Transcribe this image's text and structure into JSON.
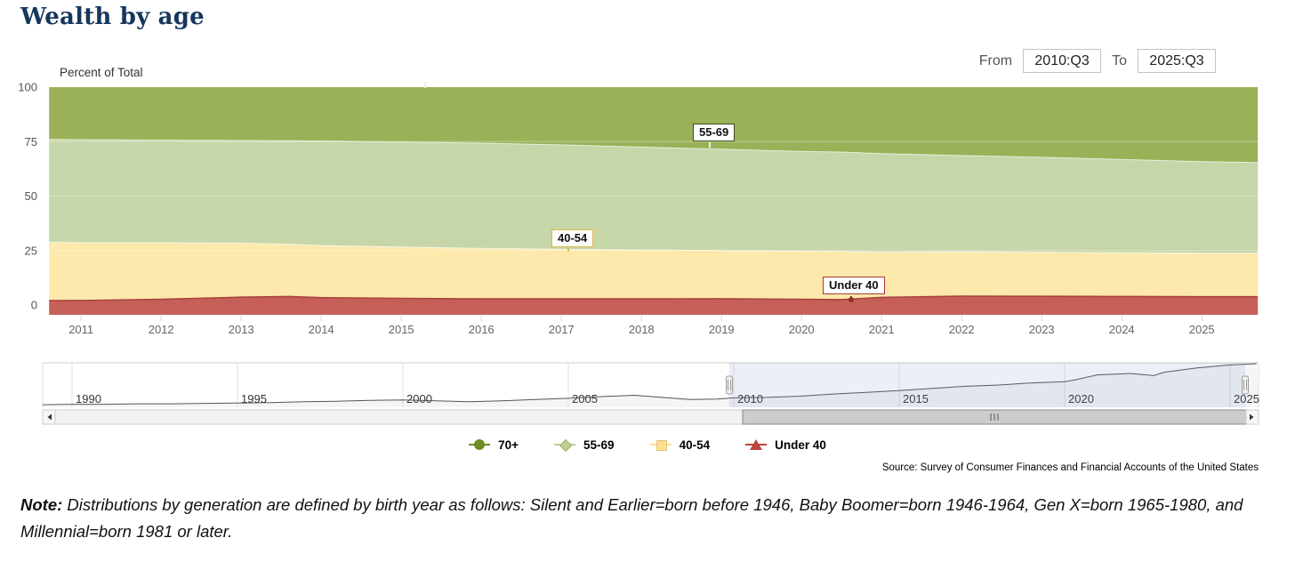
{
  "title": "Wealth by age",
  "controls": {
    "from_label": "From",
    "from_value": "2010:Q3",
    "to_label": "To",
    "to_value": "2025:Q3"
  },
  "chart": {
    "unit_label": "Percent of Total",
    "y_ticks": [
      100,
      75,
      50,
      25,
      0
    ],
    "x_ticks": [
      "2011",
      "2012",
      "2013",
      "2014",
      "2015",
      "2016",
      "2017",
      "2018",
      "2019",
      "2020",
      "2021",
      "2022",
      "2023",
      "2024",
      "2025"
    ]
  },
  "series_labels": {
    "s5569": "55-69",
    "s4054": "40-54",
    "under40": "Under 40"
  },
  "legend": {
    "items": [
      {
        "label": "70+",
        "marker": "circle",
        "color": "#6e8c25"
      },
      {
        "label": "55-69",
        "marker": "diamond",
        "color": "#bdd193"
      },
      {
        "label": "40-54",
        "marker": "square",
        "color": "#fbe094"
      },
      {
        "label": "Under 40",
        "marker": "triangle",
        "color": "#bc4540"
      }
    ]
  },
  "navigator": {
    "labels": [
      "1990",
      "1995",
      "2000",
      "2005",
      "2010",
      "2015",
      "2020",
      "2025"
    ],
    "selected_from": "2010:Q3",
    "selected_to": "2025:Q3"
  },
  "source": "Source: Survey of Consumer Finances and Financial Accounts of the United States",
  "note": {
    "label": "Note:",
    "text": " Distributions by generation are defined by birth year as follows: Silent and Earlier=born before 1946, Baby Boomer=born 1946-1964, Gen X=born 1965-1980, and Millennial=born 1981 or later."
  },
  "chart_data": {
    "type": "area",
    "stacking": "percent",
    "stack_order": "bottom-up",
    "title": "Wealth by age",
    "ylabel": "Percent of Total",
    "ylim": [
      -4.5,
      100
    ],
    "xlim": [
      2010.5,
      2025.75
    ],
    "grid": "horizontal",
    "legend_position": "bottom",
    "x": [
      2010.6,
      2011,
      2012,
      2013,
      2013.6,
      2014,
      2015,
      2016,
      2017,
      2018,
      2019,
      2020,
      2020.5,
      2021,
      2022,
      2023,
      2024,
      2025,
      2025.7
    ],
    "series": [
      {
        "name": "Under 40",
        "color": "#c55f58",
        "values": [
          2.0,
          2.1,
          2.6,
          3.6,
          3.9,
          3.4,
          3.0,
          2.8,
          2.8,
          2.8,
          2.9,
          2.6,
          2.5,
          3.5,
          4.1,
          4.0,
          3.9,
          3.8,
          3.8
        ]
      },
      {
        "name": "40-54",
        "color": "#fce9ab",
        "values": [
          26.8,
          26.5,
          26.0,
          24.8,
          24.0,
          23.9,
          23.6,
          23.2,
          22.8,
          22.5,
          22.1,
          22.1,
          22.1,
          20.8,
          20.4,
          20.2,
          20.1,
          20.0,
          20.0
        ]
      },
      {
        "name": "55-69",
        "color": "#c6d6a8",
        "values": [
          47.2,
          47.3,
          47.1,
          47.1,
          47.5,
          48.0,
          48.2,
          48.3,
          47.9,
          47.2,
          46.5,
          45.8,
          45.6,
          45.2,
          44.1,
          43.6,
          42.8,
          42.0,
          41.6
        ]
      },
      {
        "name": "70+",
        "color": "#9ab158",
        "values": [
          24.0,
          24.1,
          24.3,
          24.5,
          24.6,
          24.7,
          25.2,
          25.7,
          26.5,
          27.5,
          28.5,
          29.5,
          29.8,
          30.5,
          31.4,
          32.2,
          33.2,
          34.2,
          34.6
        ]
      }
    ],
    "navigator_sparkline": {
      "units": "normalized 0-1 (unlabeled total-wealth minichart)",
      "x": [
        1989.1,
        1990,
        1991,
        1992,
        1993,
        1994,
        1995,
        1996,
        1997,
        1998,
        1999,
        2000,
        2001,
        2002,
        2003,
        2004,
        2005,
        2006,
        2007,
        2008,
        2008.7,
        2009.5,
        2010,
        2011,
        2012,
        2013,
        2014,
        2015,
        2016,
        2017,
        2018,
        2019,
        2020,
        2020.3,
        2021,
        2022,
        2022.7,
        2023,
        2024,
        2025,
        2025.8
      ],
      "values": [
        0.04,
        0.05,
        0.05,
        0.06,
        0.06,
        0.07,
        0.08,
        0.09,
        0.11,
        0.12,
        0.14,
        0.15,
        0.13,
        0.11,
        0.13,
        0.16,
        0.19,
        0.23,
        0.26,
        0.2,
        0.16,
        0.17,
        0.2,
        0.21,
        0.24,
        0.29,
        0.33,
        0.37,
        0.42,
        0.47,
        0.5,
        0.55,
        0.58,
        0.62,
        0.74,
        0.77,
        0.72,
        0.8,
        0.9,
        0.97,
        1.0
      ]
    }
  }
}
